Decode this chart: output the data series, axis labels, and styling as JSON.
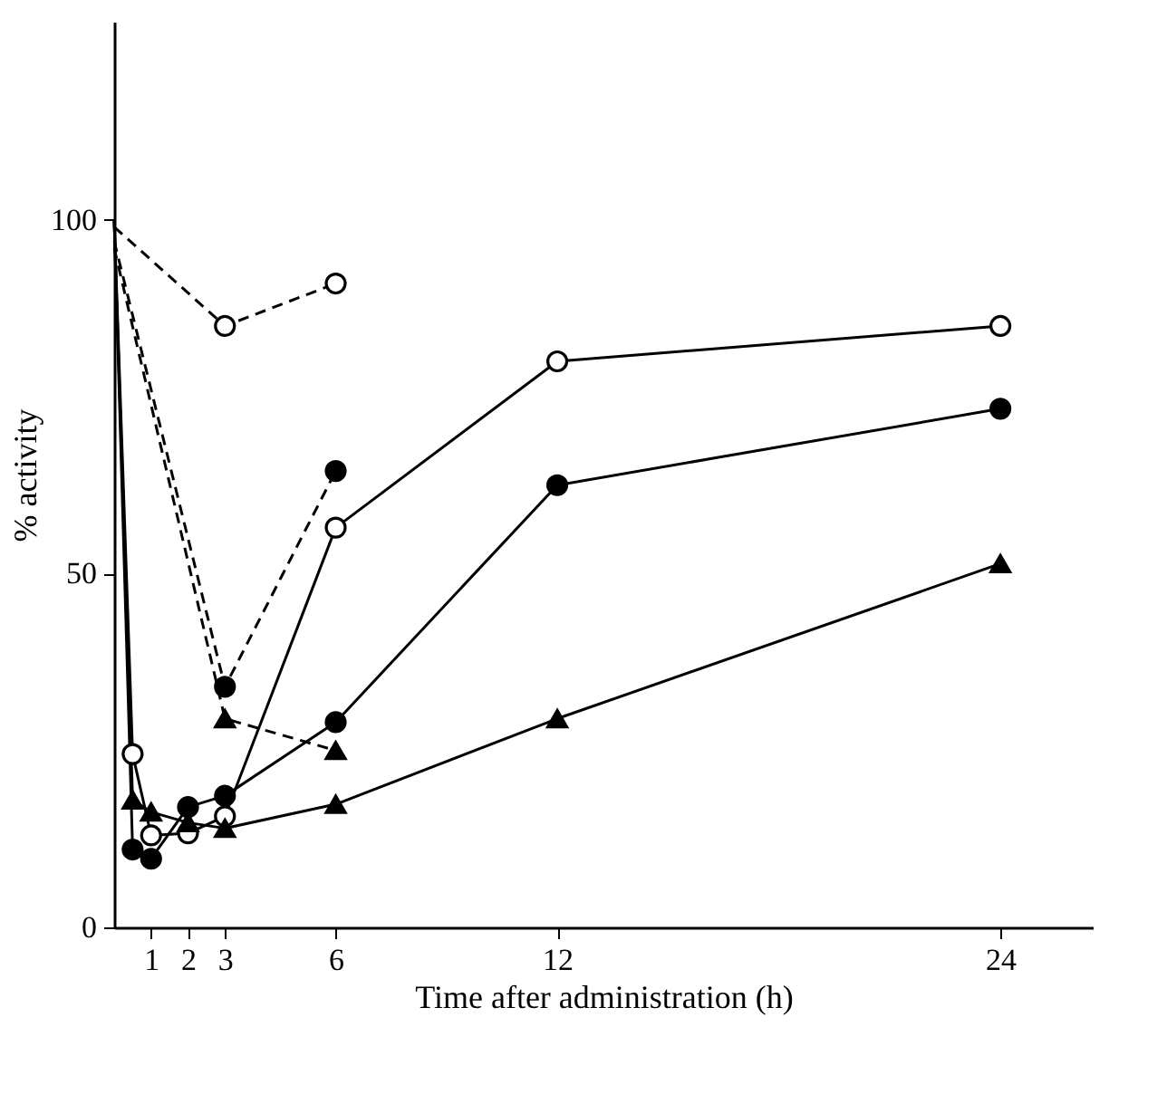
{
  "chart_data": {
    "type": "line",
    "xlabel": "Time after administration (h)",
    "ylabel": "% activity",
    "xlim": [
      0,
      26.5
    ],
    "ylim": [
      0,
      128
    ],
    "xticks": [
      1,
      2,
      3,
      6,
      12,
      24
    ],
    "yticks": [
      0,
      50,
      100
    ],
    "grid": false,
    "series": [
      {
        "color": "#000000",
        "marker": "circle",
        "line_style": "dashed",
        "x": [
          0,
          3,
          6
        ],
        "values": [
          99,
          85,
          91
        ],
        "colors": [
          null,
          "#ffffff",
          "#ffffff"
        ]
      },
      {
        "color": "#000000",
        "marker": "circle",
        "line_style": "dashed",
        "x": [
          0,
          3,
          6
        ],
        "values": [
          97,
          34,
          64.5
        ],
        "colors": [
          null,
          "#000000",
          "#000000"
        ]
      },
      {
        "color": "#000000",
        "marker": "triangle",
        "line_style": "dashed",
        "x": [
          0,
          3,
          6
        ],
        "values": [
          96,
          29.5,
          25
        ],
        "colors": [
          null,
          "#000000",
          "#000000"
        ]
      },
      {
        "color": "#000000",
        "marker": "circle",
        "line_style": "solid",
        "x": [
          0,
          0.5,
          1,
          2,
          3,
          6,
          12,
          24
        ],
        "values": [
          100,
          24.5,
          13,
          13.3,
          15.7,
          56.5,
          80,
          85
        ],
        "colors": [
          null,
          "#ffffff",
          "#ffffff",
          "#ffffff",
          "#ffffff",
          "#ffffff",
          "#ffffff",
          "#ffffff"
        ]
      },
      {
        "color": "#000000",
        "marker": "circle",
        "line_style": "solid",
        "x": [
          0,
          0.5,
          1,
          2,
          3,
          6,
          12,
          24
        ],
        "values": [
          100,
          11,
          9.7,
          17,
          18.6,
          29,
          62.5,
          73.3
        ],
        "colors": [
          null,
          "#000000",
          "#000000",
          "#000000",
          "#000000",
          "#000000",
          "#000000",
          "#000000"
        ]
      },
      {
        "color": "#000000",
        "marker": "triangle",
        "line_style": "solid",
        "x": [
          0,
          0.5,
          1,
          2,
          3,
          6,
          12,
          24
        ],
        "values": [
          100,
          18,
          16.3,
          14.8,
          14,
          17.4,
          29.5,
          51.4
        ],
        "colors": [
          null,
          "#000000",
          "#000000",
          "#000000",
          "#000000",
          "#000000",
          "#000000",
          "#000000"
        ]
      }
    ]
  }
}
